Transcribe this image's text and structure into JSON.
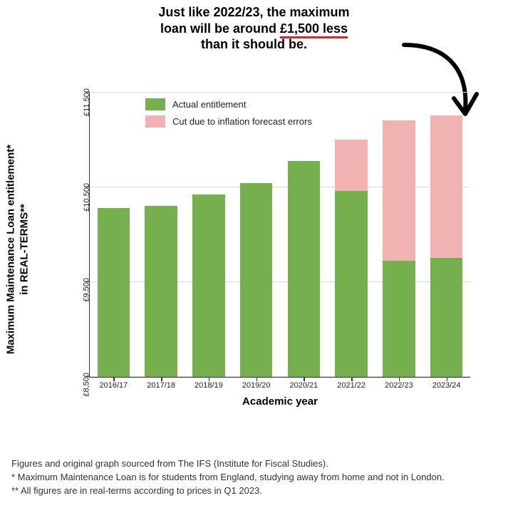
{
  "annotation": {
    "line1": "Just like 2022/23, the maximum",
    "line2_pre": "loan will be around ",
    "line2_highlight": "£1,500 less",
    "line3": "than it should be.",
    "fontsize": 18
  },
  "chart": {
    "type": "stacked-bar",
    "background_color": "#ffffff",
    "grid_color": "#d9d9d9",
    "axis_color": "#333333",
    "categories": [
      "2016/17",
      "2017/18",
      "2018/19",
      "2019/20",
      "2020/21",
      "2021/22",
      "2022/23",
      "2023/24"
    ],
    "series": {
      "actual": [
        10280,
        10300,
        10420,
        10540,
        10770,
        10460,
        9720,
        9750
      ],
      "cut": [
        0,
        0,
        0,
        0,
        0,
        540,
        1480,
        1500
      ]
    },
    "colors": {
      "actual": "#75af4e",
      "cut": "#f3b2b2"
    },
    "legend": {
      "actual": "Actual entitlement",
      "cut": "Cut due to inflation forecast errors",
      "position": "upper-left",
      "fontsize": 13
    },
    "ylim": [
      8500,
      11500
    ],
    "ytick_step": 1000,
    "ytick_labels": [
      "£8,500",
      "£9,500",
      "£10,500",
      "£11,500"
    ],
    "xlabel": "Academic year",
    "ylabel_line1": "Maximum Maintenance Loan entitlement*",
    "ylabel_line2": "in REAL-TERMS**",
    "label_fontsize": 15,
    "tick_fontsize": 11,
    "bar_width": 0.68
  },
  "footnotes": {
    "line1": "Figures and original graph sourced from The IFS (Institute for Fiscal Studies).",
    "line2": "* Maximum Maintenance Loan is for students from England, studying away from home and not in London.",
    "line3": "** All figures are in real-terms according to prices in Q1 2023.",
    "fontsize": 13
  },
  "arrow_color": "#000000",
  "highlight_underline_color": "#d8242f"
}
